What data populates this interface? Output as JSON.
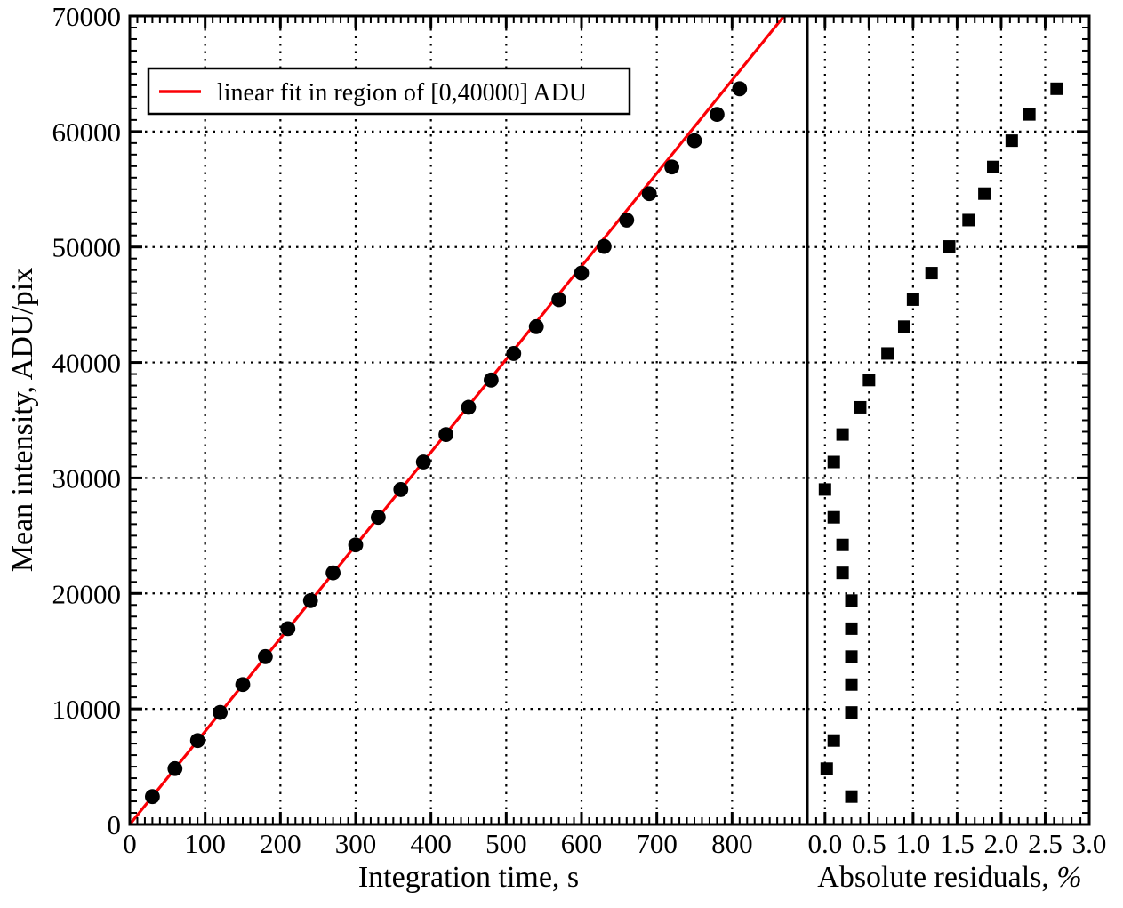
{
  "figure": {
    "background": "#ffffff",
    "frame_color": "#000000",
    "grid_color": "#000000",
    "marker_color": "#000000",
    "fit_line_color": "#fb0006"
  },
  "legend": {
    "label": "linear fit in region of [0,40000] ADU",
    "swatch": "red-line"
  },
  "left_panel": {
    "xlabel": "Integration time, s",
    "ylabel": "Mean intensity, ADU/pix",
    "x_tick_values": [
      0,
      100,
      200,
      300,
      400,
      500,
      600,
      700,
      800
    ],
    "x_tick_labels": [
      "0",
      "100",
      "200",
      "300",
      "400",
      "500",
      "600",
      "700",
      "800"
    ],
    "y_tick_values": [
      0,
      10000,
      20000,
      30000,
      40000,
      50000,
      60000,
      70000
    ],
    "y_tick_labels": [
      "0",
      "10000",
      "20000",
      "30000",
      "40000",
      "50000",
      "60000",
      "70000"
    ]
  },
  "right_panel": {
    "xlabel_main": "Absolute residuals, ",
    "xlabel_pct": "%",
    "x_tick_values": [
      0.0,
      0.5,
      1.0,
      1.5,
      2.0,
      2.5,
      3.0
    ],
    "x_tick_labels": [
      "0.0",
      "0.5",
      "1.0",
      "1.5",
      "2.0",
      "2.5",
      "3.0"
    ]
  },
  "chart_data": [
    {
      "panel": "left",
      "type": "scatter",
      "marker": "circle",
      "title": "",
      "xlabel": "Integration time, s",
      "ylabel": "Mean intensity, ADU/pix",
      "xlim": [
        0,
        900
      ],
      "ylim": [
        0,
        70000
      ],
      "x_major_tick_step": 100,
      "x_minor_tick_step": 10,
      "y_major_tick_step": 10000,
      "y_minor_tick_step": 1000,
      "grid": "dotted-at-major-ticks",
      "x": [
        30,
        60,
        90,
        120,
        150,
        180,
        210,
        240,
        270,
        300,
        330,
        360,
        390,
        420,
        450,
        480,
        510,
        540,
        570,
        600,
        630,
        660,
        690,
        720,
        750,
        780,
        810
      ],
      "y": [
        2410,
        4830,
        7260,
        9690,
        12110,
        14530,
        16950,
        19380,
        21780,
        24200,
        26590,
        29000,
        31380,
        33760,
        36120,
        38480,
        40780,
        43100,
        45440,
        47740,
        50050,
        52330,
        54620,
        56930,
        59210,
        61480,
        63700
      ],
      "fit_line": {
        "label": "linear fit in region of [0,40000] ADU",
        "slope_adu_per_s": 80.55,
        "intercept_adu": 0,
        "fit_region_adu": [
          0,
          40000
        ],
        "color": "#fb0006"
      }
    },
    {
      "panel": "right",
      "type": "scatter",
      "marker": "square",
      "title": "",
      "xlabel": "Absolute residuals, %",
      "xlim": [
        -0.2,
        3.0
      ],
      "ylim": [
        0,
        70000
      ],
      "x_major_tick_step": 0.5,
      "x_minor_tick_step": 0.1,
      "y_major_tick_step": 10000,
      "y_minor_tick_step": 1000,
      "grid": "dotted-at-major-ticks",
      "x": [
        0.3,
        0.02,
        0.1,
        0.3,
        0.3,
        0.3,
        0.3,
        0.3,
        0.2,
        0.2,
        0.1,
        0.0,
        0.1,
        0.2,
        0.4,
        0.5,
        0.71,
        0.9,
        1.0,
        1.21,
        1.41,
        1.63,
        1.81,
        1.91,
        2.12,
        2.32,
        2.63
      ],
      "y": [
        2410,
        4830,
        7260,
        9690,
        12110,
        14530,
        16950,
        19380,
        21780,
        24200,
        26590,
        29000,
        31380,
        33760,
        36120,
        38480,
        40780,
        43100,
        45440,
        47740,
        50050,
        52330,
        54620,
        56930,
        59210,
        61480,
        63700
      ]
    }
  ]
}
